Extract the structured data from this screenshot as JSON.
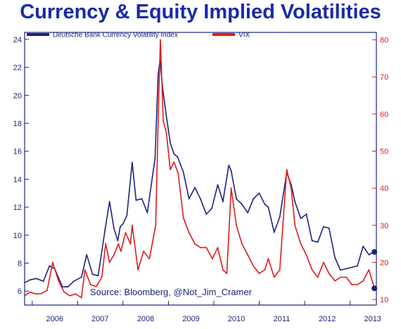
{
  "chart_data": {
    "type": "line",
    "title": "Currency & Equity Implied Volatilities",
    "annotation": "Source: Bloomberg, @Not_Jim_Cramer",
    "x_ticks": [
      "2006",
      "2007",
      "2008",
      "2009",
      "2010",
      "2011",
      "2012",
      "2013"
    ],
    "xlim": [
      "2005-11-01",
      "2013-07-31"
    ],
    "left_axis": {
      "ylim": [
        5,
        24.5
      ],
      "ticks": [
        6,
        8,
        10,
        12,
        14,
        16,
        18,
        20,
        22,
        24
      ],
      "color": "#1c237c"
    },
    "right_axis": {
      "ylim": [
        8.5,
        82
      ],
      "ticks": [
        10,
        20,
        30,
        40,
        50,
        60,
        70,
        80
      ],
      "color": "#e01b1b"
    },
    "legend_position": "top",
    "series": [
      {
        "name": "Deutsche Bank Currency Volatility Index",
        "axis": "left",
        "color": "#1c237c",
        "x": [
          "2005-11-01",
          "2005-12-15",
          "2006-02-01",
          "2006-04-01",
          "2006-05-20",
          "2006-07-01",
          "2006-09-01",
          "2006-10-15",
          "2006-12-01",
          "2007-02-01",
          "2007-03-15",
          "2007-05-01",
          "2007-06-15",
          "2007-08-10",
          "2007-09-15",
          "2007-10-20",
          "2007-11-20",
          "2007-12-10",
          "2008-01-01",
          "2008-02-01",
          "2008-03-15",
          "2008-04-15",
          "2008-06-01",
          "2008-07-15",
          "2008-09-15",
          "2008-10-10",
          "2008-10-25",
          "2008-11-15",
          "2008-12-15",
          "2009-01-15",
          "2009-02-15",
          "2009-03-15",
          "2009-05-01",
          "2009-06-15",
          "2009-08-01",
          "2009-09-15",
          "2009-11-01",
          "2009-12-15",
          "2010-02-01",
          "2010-03-15",
          "2010-05-01",
          "2010-05-20",
          "2010-07-01",
          "2010-08-15",
          "2010-10-01",
          "2010-11-15",
          "2011-01-01",
          "2011-02-15",
          "2011-03-15",
          "2011-05-01",
          "2011-06-15",
          "2011-08-10",
          "2011-09-15",
          "2011-10-15",
          "2011-12-01",
          "2012-01-15",
          "2012-03-01",
          "2012-04-15",
          "2012-06-01",
          "2012-07-15",
          "2012-09-01",
          "2012-10-15",
          "2012-12-01",
          "2013-01-15",
          "2013-03-01",
          "2013-04-15",
          "2013-06-01",
          "2013-07-15"
        ],
        "values": [
          6.6,
          6.8,
          6.9,
          6.7,
          7.8,
          7.6,
          6.3,
          6.3,
          6.7,
          7.0,
          8.6,
          7.2,
          7.1,
          10.4,
          12.4,
          10.5,
          9.6,
          10.6,
          10.8,
          11.4,
          15.2,
          12.5,
          12.6,
          11.6,
          15.5,
          21.5,
          22.5,
          20.5,
          18.5,
          16.6,
          15.8,
          15.6,
          14.5,
          12.6,
          13.4,
          12.6,
          11.5,
          11.9,
          13.6,
          12.4,
          15.0,
          14.6,
          12.6,
          12.2,
          11.6,
          12.6,
          13.0,
          12.2,
          12.0,
          10.2,
          11.3,
          14.5,
          13.6,
          12.4,
          11.2,
          11.5,
          9.6,
          9.5,
          10.6,
          10.5,
          8.4,
          7.5,
          7.6,
          7.7,
          7.8,
          9.2,
          8.6,
          8.8
        ]
      },
      {
        "name": "VIX",
        "axis": "right",
        "color": "#e01b1b",
        "x": [
          "2005-11-01",
          "2005-12-15",
          "2006-02-01",
          "2006-03-15",
          "2006-05-01",
          "2006-06-15",
          "2006-08-01",
          "2006-09-15",
          "2006-11-01",
          "2006-12-15",
          "2007-02-01",
          "2007-03-01",
          "2007-04-15",
          "2007-06-01",
          "2007-07-15",
          "2007-08-15",
          "2007-09-15",
          "2007-10-20",
          "2007-11-25",
          "2007-12-15",
          "2008-01-22",
          "2008-03-01",
          "2008-03-15",
          "2008-05-01",
          "2008-06-15",
          "2008-08-01",
          "2008-09-20",
          "2008-10-15",
          "2008-10-28",
          "2008-11-20",
          "2008-12-15",
          "2009-01-15",
          "2009-02-15",
          "2009-03-20",
          "2009-05-01",
          "2009-06-15",
          "2009-08-01",
          "2009-09-15",
          "2009-11-01",
          "2009-12-20",
          "2010-02-01",
          "2010-03-15",
          "2010-04-15",
          "2010-05-20",
          "2010-07-01",
          "2010-08-15",
          "2010-10-01",
          "2010-11-15",
          "2011-01-01",
          "2011-02-15",
          "2011-03-15",
          "2011-05-01",
          "2011-06-15",
          "2011-08-10",
          "2011-09-15",
          "2011-10-15",
          "2011-12-01",
          "2012-01-15",
          "2012-03-01",
          "2012-04-15",
          "2012-06-01",
          "2012-07-15",
          "2012-09-01",
          "2012-10-15",
          "2012-12-01",
          "2013-01-15",
          "2013-03-01",
          "2013-04-15",
          "2013-06-01",
          "2013-07-15"
        ],
        "values": [
          11.0,
          12.0,
          11.5,
          11.6,
          12.5,
          20.0,
          15.0,
          12.0,
          11.0,
          11.5,
          10.5,
          18.0,
          14.0,
          13.5,
          16.0,
          25.0,
          20.0,
          22.0,
          25.0,
          23.0,
          28.0,
          25.0,
          30.0,
          18.0,
          23.0,
          21.0,
          30.0,
          65.0,
          80.0,
          58.0,
          55.0,
          45.0,
          47.0,
          44.0,
          32.0,
          28.0,
          25.0,
          24.0,
          24.0,
          21.0,
          24.0,
          18.0,
          17.0,
          40.0,
          30.0,
          25.0,
          22.0,
          19.0,
          17.0,
          18.0,
          21.0,
          16.0,
          18.0,
          45.0,
          40.0,
          30.0,
          25.0,
          22.0,
          18.0,
          16.0,
          20.0,
          17.0,
          15.0,
          16.0,
          16.0,
          14.0,
          14.0,
          15.0,
          18.0,
          13.0
        ]
      }
    ]
  },
  "source_label": "Source: Bloomberg, @Not_Jim_Cramer"
}
